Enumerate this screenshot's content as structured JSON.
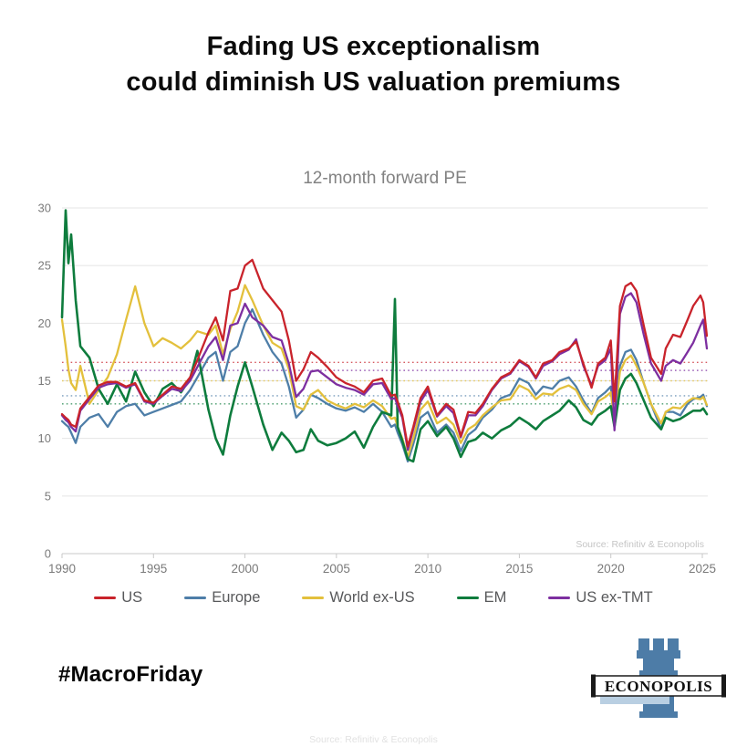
{
  "title": {
    "line1": "Fading US exceptionalism",
    "line2": "could diminish US valuation premiums"
  },
  "chart_data": {
    "type": "line",
    "title": "12-month forward PE",
    "xlabel": "",
    "ylabel": "",
    "xlim": [
      1990,
      2025.3
    ],
    "ylim": [
      0,
      30
    ],
    "yticks": [
      0,
      5,
      10,
      15,
      20,
      25,
      30
    ],
    "xticks": [
      1990,
      1995,
      2000,
      2005,
      2010,
      2015,
      2020,
      2025
    ],
    "grid": true,
    "legend_position": "bottom",
    "source_annotation": "Source: Refinitiv & Econopolis",
    "x": [
      1990.0,
      1990.2,
      1990.35,
      1990.5,
      1990.75,
      1991.0,
      1991.5,
      1992.0,
      1992.5,
      1993.0,
      1993.5,
      1994.0,
      1994.5,
      1995.0,
      1995.5,
      1996.0,
      1996.5,
      1997.0,
      1997.4,
      1998.0,
      1998.4,
      1998.8,
      1999.2,
      1999.6,
      2000.0,
      2000.4,
      2001.0,
      2001.5,
      2002.0,
      2002.4,
      2002.8,
      2003.2,
      2003.6,
      2004.0,
      2004.5,
      2005.0,
      2005.5,
      2006.0,
      2006.5,
      2007.0,
      2007.5,
      2008.0,
      2008.2,
      2008.35,
      2008.6,
      2008.9,
      2009.2,
      2009.6,
      2010.0,
      2010.5,
      2011.0,
      2011.4,
      2011.8,
      2012.2,
      2012.6,
      2013.0,
      2013.5,
      2014.0,
      2014.5,
      2015.0,
      2015.5,
      2015.9,
      2016.3,
      2016.8,
      2017.2,
      2017.7,
      2018.1,
      2018.5,
      2018.95,
      2019.3,
      2019.7,
      2020.0,
      2020.2,
      2020.5,
      2020.8,
      2021.1,
      2021.4,
      2021.8,
      2022.2,
      2022.75,
      2023.0,
      2023.4,
      2023.8,
      2024.2,
      2024.5,
      2024.9,
      2025.05,
      2025.25
    ],
    "series": [
      {
        "name": "US",
        "color": "#c9232b",
        "mean": 16.6,
        "values": [
          12.1,
          11.8,
          11.6,
          11.2,
          11.0,
          12.6,
          13.6,
          14.6,
          14.9,
          14.9,
          14.5,
          14.8,
          13.3,
          13.1,
          13.8,
          14.5,
          14.3,
          15.3,
          16.8,
          19.2,
          20.5,
          18.5,
          22.8,
          23.0,
          25.0,
          25.5,
          23.0,
          22.0,
          21.0,
          18.5,
          15.0,
          16.0,
          17.5,
          17.0,
          16.2,
          15.3,
          14.8,
          14.5,
          14.0,
          15.0,
          15.2,
          13.7,
          13.8,
          13.2,
          12.0,
          9.3,
          11.0,
          13.5,
          14.5,
          12.0,
          13.0,
          12.5,
          10.2,
          12.3,
          12.2,
          13.0,
          14.3,
          15.3,
          15.7,
          16.8,
          16.3,
          15.3,
          16.5,
          16.8,
          17.5,
          17.8,
          18.4,
          16.5,
          14.4,
          16.5,
          17.0,
          18.5,
          13.2,
          21.5,
          23.2,
          23.5,
          22.8,
          19.8,
          17.0,
          15.6,
          17.8,
          19.0,
          18.8,
          20.3,
          21.5,
          22.4,
          21.8,
          18.9
        ]
      },
      {
        "name": "Europe",
        "color": "#4e7ea8",
        "mean": 13.7,
        "values": [
          11.5,
          11.2,
          11.0,
          10.5,
          9.6,
          11.0,
          11.8,
          12.1,
          11.0,
          12.3,
          12.8,
          13.0,
          12.0,
          12.3,
          12.6,
          12.9,
          13.2,
          14.2,
          15.3,
          17.0,
          17.5,
          15.0,
          17.5,
          18.0,
          20.0,
          21.2,
          19.0,
          17.5,
          16.5,
          14.5,
          11.8,
          12.5,
          13.8,
          13.5,
          13.0,
          12.6,
          12.4,
          12.7,
          12.3,
          13.0,
          12.3,
          11.0,
          11.2,
          10.5,
          9.5,
          8.0,
          9.5,
          11.8,
          12.3,
          10.5,
          11.2,
          10.5,
          8.9,
          10.3,
          10.8,
          11.8,
          12.5,
          13.5,
          13.8,
          15.2,
          14.8,
          13.8,
          14.5,
          14.3,
          15.0,
          15.3,
          14.5,
          13.3,
          12.2,
          13.5,
          14.0,
          14.5,
          11.0,
          16.3,
          17.5,
          17.7,
          16.8,
          14.8,
          13.0,
          10.8,
          12.3,
          12.3,
          12.0,
          13.0,
          13.4,
          13.6,
          13.8,
          12.8
        ]
      },
      {
        "name": "World ex-US",
        "color": "#e3c03c",
        "mean": 15.0,
        "values": [
          20.3,
          18.0,
          16.0,
          14.8,
          14.2,
          16.3,
          13.0,
          14.2,
          15.3,
          17.3,
          20.3,
          23.2,
          20.0,
          18.0,
          18.7,
          18.3,
          17.8,
          18.5,
          19.3,
          19.0,
          19.8,
          17.3,
          19.5,
          21.0,
          23.3,
          22.0,
          19.8,
          18.3,
          17.8,
          16.0,
          12.8,
          12.5,
          13.8,
          14.2,
          13.3,
          12.9,
          12.6,
          13.0,
          12.7,
          13.3,
          12.8,
          11.7,
          11.8,
          11.0,
          10.0,
          8.4,
          10.0,
          12.5,
          13.2,
          11.3,
          11.8,
          11.2,
          9.6,
          10.8,
          11.2,
          12.0,
          12.7,
          13.3,
          13.4,
          14.6,
          14.2,
          13.4,
          13.9,
          13.8,
          14.3,
          14.6,
          14.2,
          13.0,
          12.1,
          13.2,
          13.6,
          14.0,
          11.5,
          15.8,
          16.8,
          17.2,
          16.3,
          14.8,
          13.0,
          11.3,
          12.3,
          12.7,
          12.6,
          13.2,
          13.5,
          13.4,
          13.6,
          12.9
        ]
      },
      {
        "name": "EM",
        "color": "#0e7c3d",
        "mean": 13.0,
        "values": [
          20.5,
          29.8,
          25.2,
          27.7,
          22.0,
          18.0,
          17.0,
          14.3,
          13.0,
          14.7,
          13.2,
          15.8,
          14.0,
          12.8,
          14.3,
          14.8,
          14.0,
          15.2,
          17.6,
          12.5,
          10.0,
          8.6,
          12.0,
          14.5,
          16.6,
          14.5,
          11.2,
          9.0,
          10.5,
          9.8,
          8.8,
          9.0,
          10.8,
          9.8,
          9.4,
          9.6,
          10.0,
          10.6,
          9.2,
          11.0,
          12.3,
          12.0,
          22.1,
          11.0,
          9.8,
          8.2,
          8.0,
          10.8,
          11.5,
          10.2,
          11.0,
          10.0,
          8.4,
          9.7,
          9.9,
          10.5,
          10.0,
          10.7,
          11.1,
          11.8,
          11.3,
          10.8,
          11.5,
          12.0,
          12.4,
          13.3,
          12.7,
          11.6,
          11.2,
          12.0,
          12.4,
          12.8,
          11.0,
          14.2,
          15.2,
          15.6,
          14.8,
          13.3,
          11.8,
          10.8,
          11.8,
          11.5,
          11.7,
          12.1,
          12.4,
          12.4,
          12.6,
          12.1
        ]
      },
      {
        "name": "US ex-TMT",
        "color": "#7d2fa0",
        "mean": 15.9,
        "values": [
          12.0,
          11.6,
          11.4,
          11.0,
          10.6,
          12.4,
          13.4,
          14.4,
          14.7,
          14.8,
          14.4,
          14.7,
          13.2,
          13.0,
          13.7,
          14.3,
          14.1,
          15.0,
          16.2,
          18.0,
          18.8,
          16.8,
          19.8,
          20.0,
          21.7,
          20.5,
          19.8,
          18.8,
          18.5,
          16.5,
          13.6,
          14.3,
          15.8,
          15.9,
          15.3,
          14.7,
          14.4,
          14.2,
          13.8,
          14.7,
          14.8,
          13.4,
          13.5,
          12.8,
          11.8,
          9.0,
          10.8,
          13.2,
          14.2,
          11.9,
          12.8,
          12.2,
          10.1,
          12.0,
          12.0,
          12.8,
          14.2,
          15.2,
          15.6,
          16.7,
          16.2,
          15.2,
          16.3,
          16.7,
          17.3,
          17.7,
          18.6,
          16.3,
          14.6,
          16.3,
          16.8,
          17.8,
          10.7,
          20.8,
          22.3,
          22.6,
          21.8,
          19.0,
          16.5,
          15.0,
          16.3,
          16.8,
          16.5,
          17.5,
          18.3,
          19.8,
          20.3,
          17.8
        ]
      }
    ]
  },
  "footer": {
    "hashtag": "#MacroFriday",
    "logo_text": "ECONOPOLIS",
    "source_bottom": "Source: Refinitiv & Econopolis"
  }
}
